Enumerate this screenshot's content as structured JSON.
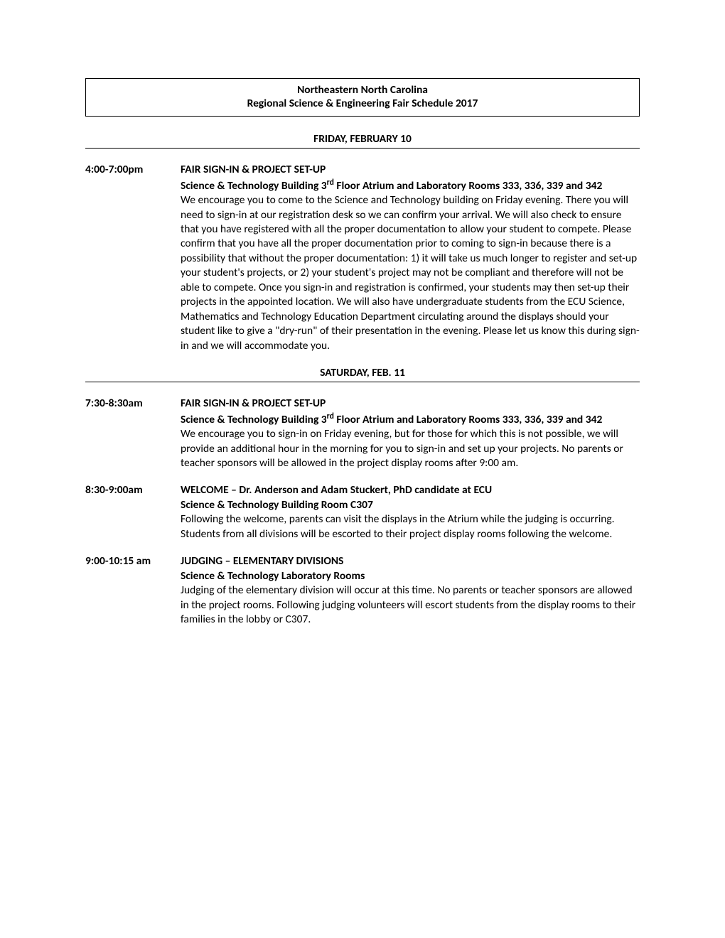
{
  "header": {
    "line1": "Northeastern North Carolina",
    "line2": "Regional Science & Engineering Fair Schedule 2017"
  },
  "days": [
    {
      "label": "FRIDAY, FEBRUARY 10",
      "events": [
        {
          "time": "4:00-7:00pm",
          "title": "FAIR SIGN-IN & PROJECT SET-UP",
          "loc_prefix": "Science & Technology Building 3",
          "loc_sup": "rd",
          "loc_suffix": " Floor Atrium and Laboratory Rooms 333, 336, 339 and 342",
          "body": "We encourage you to come to the Science and Technology building on Friday evening. There you will need to sign-in at our registration desk so we can confirm your arrival. We will also check to ensure that you have registered with all the proper documentation to allow your student to compete. Please confirm that you have all the proper documentation prior to coming to sign-in because there is a possibility that without the proper documentation: 1) it will take us much longer to register and set-up your student's projects, or 2) your student's project may not be compliant and therefore will not be able to compete. Once you sign-in and registration is confirmed, your students may then set-up their projects in the appointed location. We will also have undergraduate students from the ECU Science, Mathematics and Technology Education Department circulating around the displays should your student like to give a \"dry-run\" of their presentation in the evening. Please let us know this during sign-in and we will accommodate you."
        }
      ]
    },
    {
      "label": "SATURDAY, FEB. 11",
      "events": [
        {
          "time": "7:30-8:30am",
          "title": "FAIR SIGN-IN & PROJECT SET-UP",
          "loc_prefix": "Science & Technology Building 3",
          "loc_sup": "rd",
          "loc_suffix": " Floor Atrium and Laboratory Rooms 333, 336, 339 and 342",
          "body": "We encourage you to sign-in on Friday evening, but for those for which this is not possible, we will provide an additional hour in the morning for you to sign-in and set up your projects. No parents or teacher sponsors will be allowed in the project display rooms after 9:00 am."
        },
        {
          "time": "8:30-9:00am",
          "title": "WELCOME – Dr. Anderson and Adam Stuckert, PhD candidate at ECU",
          "loc_prefix": "Science & Technology Building Room C307",
          "loc_sup": "",
          "loc_suffix": "",
          "body": "Following the welcome, parents can visit the displays in the Atrium while the judging is occurring. Students from all divisions will be escorted to their project display rooms following the welcome."
        },
        {
          "time": "9:00-10:15 am",
          "title": "JUDGING – ELEMENTARY DIVISIONS",
          "loc_prefix": "Science & Technology Laboratory Rooms",
          "loc_sup": "",
          "loc_suffix": "",
          "body": "Judging of the elementary division will occur at this time. No parents or teacher sponsors are allowed in the project rooms. Following judging volunteers will escort students from the display rooms to their families in the lobby or C307."
        }
      ]
    }
  ]
}
